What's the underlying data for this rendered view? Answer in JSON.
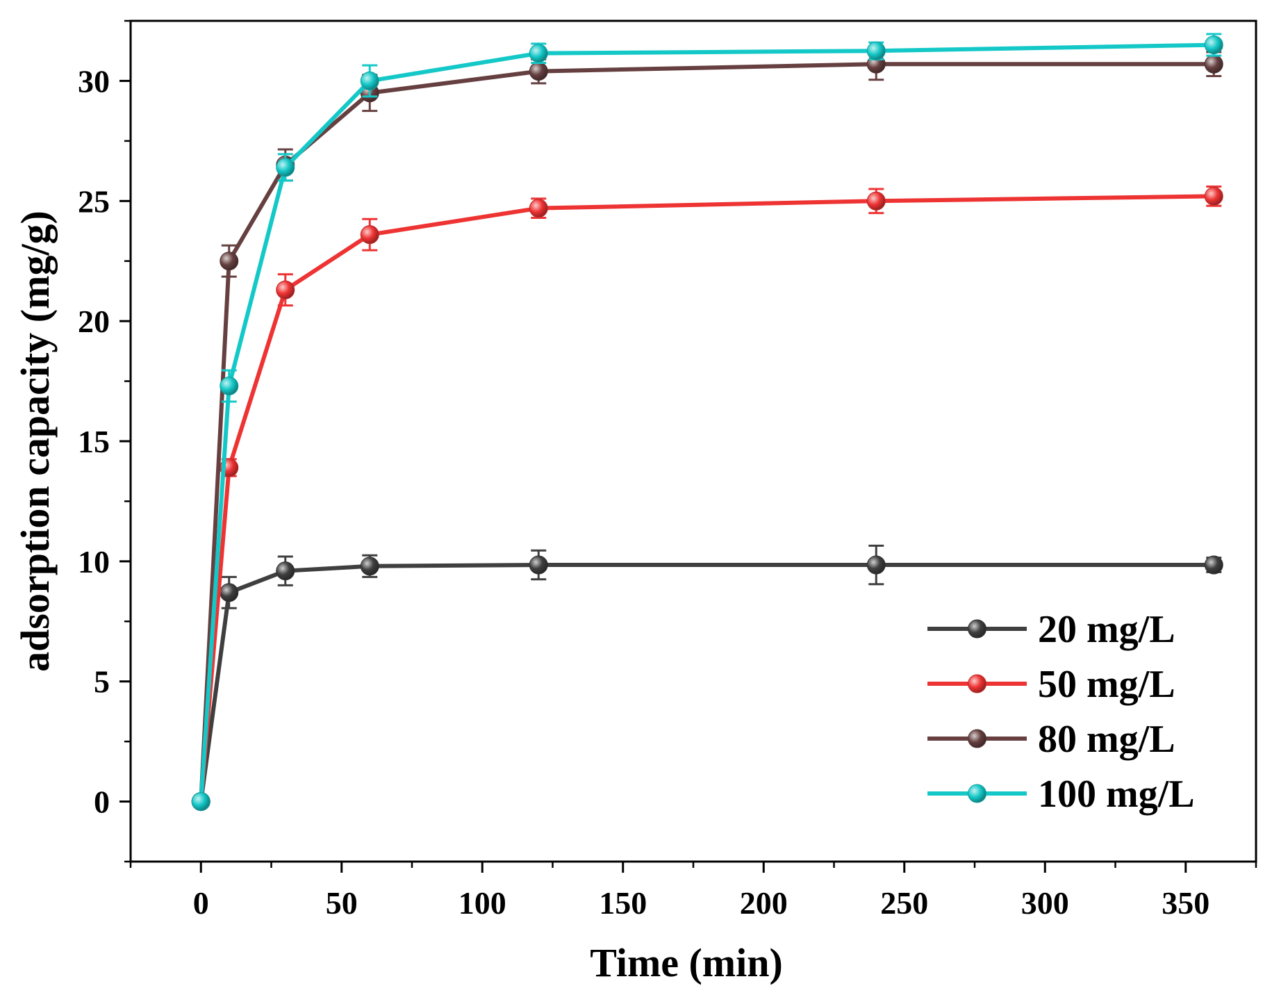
{
  "chart_data": {
    "type": "line",
    "title": "",
    "xlabel": "Time (min)",
    "ylabel": "adsorption capacity (mg/g)",
    "xlim": [
      -25,
      375
    ],
    "ylim": [
      -2.5,
      32.5
    ],
    "xticks": [
      0,
      50,
      100,
      150,
      200,
      250,
      300,
      350
    ],
    "yticks": [
      0,
      5,
      10,
      15,
      20,
      25,
      30
    ],
    "xtick_labels": [
      "0",
      "50",
      "100",
      "150",
      "200",
      "250",
      "300",
      "350"
    ],
    "ytick_labels": [
      "0",
      "5",
      "10",
      "15",
      "20",
      "25",
      "30"
    ],
    "legend_position": "bottom-right",
    "x": [
      0,
      10,
      30,
      60,
      120,
      240,
      360
    ],
    "series": [
      {
        "name": "20 mg/L",
        "color": "#3f3f3f",
        "values": [
          0,
          8.7,
          9.6,
          9.8,
          9.85,
          9.85,
          9.85
        ],
        "errors": [
          0,
          0.65,
          0.6,
          0.45,
          0.6,
          0.8,
          0.3
        ]
      },
      {
        "name": "50 mg/L",
        "color": "#ee3333",
        "values": [
          0,
          13.9,
          21.3,
          23.6,
          24.7,
          25.0,
          25.2
        ],
        "errors": [
          0,
          0.35,
          0.65,
          0.65,
          0.4,
          0.5,
          0.4
        ]
      },
      {
        "name": "80 mg/L",
        "color": "#664040",
        "values": [
          0,
          22.5,
          26.5,
          29.5,
          30.4,
          30.7,
          30.7
        ],
        "errors": [
          0,
          0.65,
          0.65,
          0.75,
          0.5,
          0.65,
          0.5
        ]
      },
      {
        "name": "100 mg/L",
        "color": "#15c8c8",
        "values": [
          0,
          17.3,
          26.4,
          30.0,
          31.15,
          31.25,
          31.5
        ],
        "errors": [
          0,
          0.65,
          0.55,
          0.65,
          0.4,
          0.35,
          0.45
        ]
      }
    ]
  }
}
